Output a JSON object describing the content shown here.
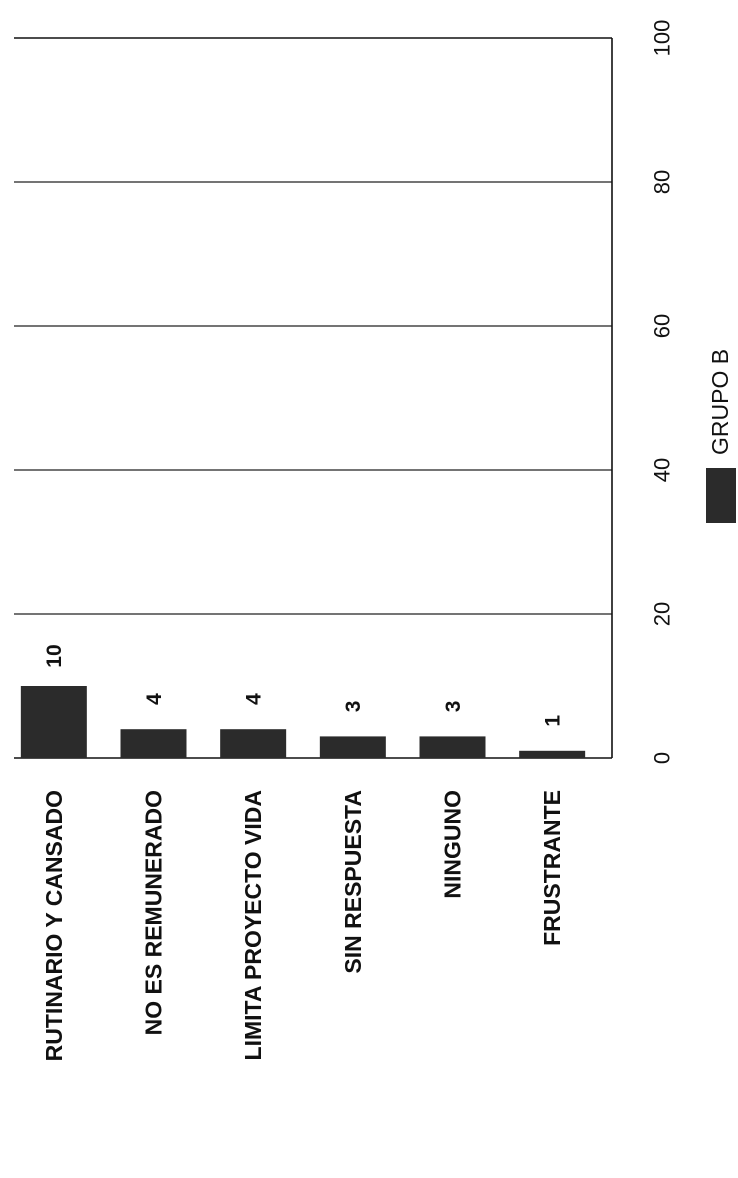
{
  "chart_data": {
    "type": "bar",
    "orientation": "horizontal",
    "rotated_page": true,
    "categories": [
      "RUTINARIO Y CANSADO",
      "NO ES REMUNERADO",
      "LIMITA  PROYECTO VIDA",
      "SIN RESPUESTA",
      "NINGUNO",
      "FRUSTRANTE"
    ],
    "series": [
      {
        "name": "GRUPO B",
        "values": [
          10,
          4,
          4,
          3,
          3,
          1
        ],
        "color": "#2b2b2b"
      }
    ],
    "data_labels": [
      "10",
      "4",
      "4",
      "3",
      "3",
      "1"
    ],
    "xlim": [
      0,
      100
    ],
    "ticks": [
      0,
      20,
      40,
      60,
      80,
      100
    ],
    "tick_labels": [
      "0",
      "20",
      "40",
      "60",
      "80",
      "100"
    ],
    "grid": true,
    "legend": "bottom",
    "title": "",
    "xlabel": "",
    "ylabel": ""
  }
}
